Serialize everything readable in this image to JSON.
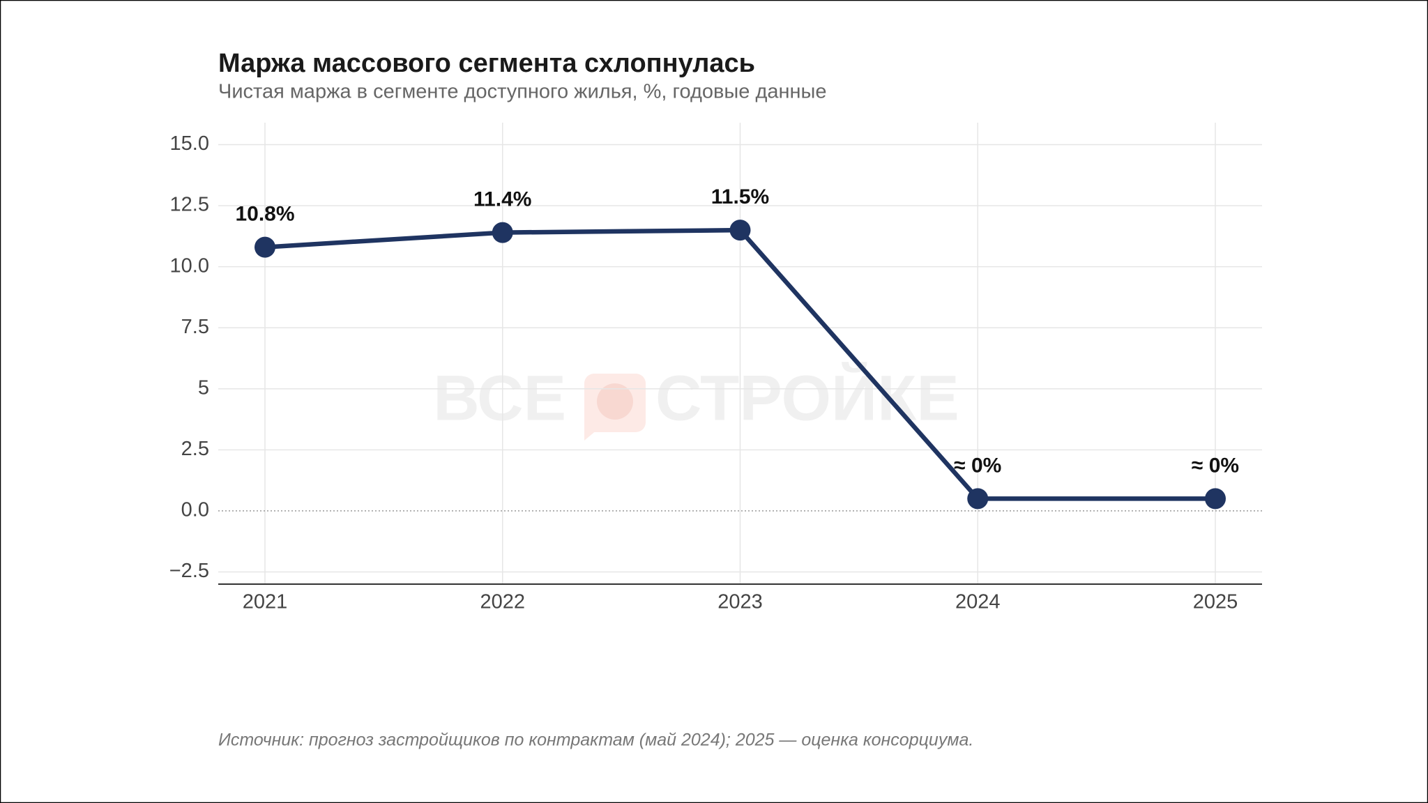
{
  "chart_data": {
    "type": "line",
    "title": "Маржа массового сегмента схлопнулась",
    "subtitle": "Чистая маржа в сегменте доступного жилья, %, годовые данные",
    "categories": [
      "2021",
      "2022",
      "2023",
      "2024",
      "2025"
    ],
    "series": [
      {
        "name": "Чистая маржа",
        "color": "#1f3461",
        "values": [
          10.8,
          11.4,
          11.5,
          0.5,
          0.5
        ],
        "value_labels": [
          "10.8%",
          "11.4%",
          "11.5%",
          "≈ 0%",
          "≈ 0%"
        ]
      }
    ],
    "ylim": [
      -3,
      15.9
    ],
    "yticks": [
      {
        "value": -2.5,
        "label": "−2.5"
      },
      {
        "value": 0,
        "label": "0.0"
      },
      2.5,
      5,
      7.5,
      {
        "value": 10,
        "label": "10.0"
      },
      12.5,
      {
        "value": 15,
        "label": "15.0"
      }
    ],
    "grid": true,
    "watermark": [
      "ВСЕ",
      "СТРОЙКЕ"
    ],
    "source": "Источник: прогноз застройщиков по контрактам (май 2024); 2025 — оценка консорциума."
  }
}
